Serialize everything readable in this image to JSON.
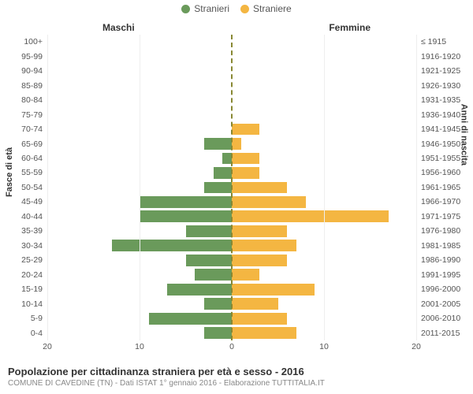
{
  "legend": {
    "male": {
      "label": "Stranieri",
      "color": "#6a9a5b"
    },
    "female": {
      "label": "Straniere",
      "color": "#f4b642"
    }
  },
  "column_headers": {
    "left": "Maschi",
    "right": "Femmine"
  },
  "y_axis_titles": {
    "left": "Fasce di età",
    "right": "Anni di nascita"
  },
  "x_axis": {
    "max": 20,
    "ticks": [
      20,
      10,
      0,
      10,
      20
    ]
  },
  "caption": {
    "title": "Popolazione per cittadinanza straniera per età e sesso - 2016",
    "subtitle": "COMUNE DI CAVEDINE (TN) - Dati ISTAT 1° gennaio 2016 - Elaborazione TUTTITALIA.IT"
  },
  "styling": {
    "bg": "#ffffff",
    "grid_color": "#eeeeee",
    "center_dash_color": "#888833",
    "text_color": "#555555",
    "label_fontsize": 10.5,
    "title_fontsize": 13,
    "bar_border": "#ffffff"
  },
  "rows": [
    {
      "age": "100+",
      "birth": "≤ 1915",
      "m": 0,
      "f": 0
    },
    {
      "age": "95-99",
      "birth": "1916-1920",
      "m": 0,
      "f": 0
    },
    {
      "age": "90-94",
      "birth": "1921-1925",
      "m": 0,
      "f": 0
    },
    {
      "age": "85-89",
      "birth": "1926-1930",
      "m": 0,
      "f": 0
    },
    {
      "age": "80-84",
      "birth": "1931-1935",
      "m": 0,
      "f": 0
    },
    {
      "age": "75-79",
      "birth": "1936-1940",
      "m": 0,
      "f": 0
    },
    {
      "age": "70-74",
      "birth": "1941-1945",
      "m": 0,
      "f": 3
    },
    {
      "age": "65-69",
      "birth": "1946-1950",
      "m": 3,
      "f": 1
    },
    {
      "age": "60-64",
      "birth": "1951-1955",
      "m": 1,
      "f": 3
    },
    {
      "age": "55-59",
      "birth": "1956-1960",
      "m": 2,
      "f": 3
    },
    {
      "age": "50-54",
      "birth": "1961-1965",
      "m": 3,
      "f": 6
    },
    {
      "age": "45-49",
      "birth": "1966-1970",
      "m": 10,
      "f": 8
    },
    {
      "age": "40-44",
      "birth": "1971-1975",
      "m": 10,
      "f": 17
    },
    {
      "age": "35-39",
      "birth": "1976-1980",
      "m": 5,
      "f": 6
    },
    {
      "age": "30-34",
      "birth": "1981-1985",
      "m": 13,
      "f": 7
    },
    {
      "age": "25-29",
      "birth": "1986-1990",
      "m": 5,
      "f": 6
    },
    {
      "age": "20-24",
      "birth": "1991-1995",
      "m": 4,
      "f": 3
    },
    {
      "age": "15-19",
      "birth": "1996-2000",
      "m": 7,
      "f": 9
    },
    {
      "age": "10-14",
      "birth": "2001-2005",
      "m": 3,
      "f": 5
    },
    {
      "age": "5-9",
      "birth": "2006-2010",
      "m": 9,
      "f": 6
    },
    {
      "age": "0-4",
      "birth": "2011-2015",
      "m": 3,
      "f": 7
    }
  ]
}
